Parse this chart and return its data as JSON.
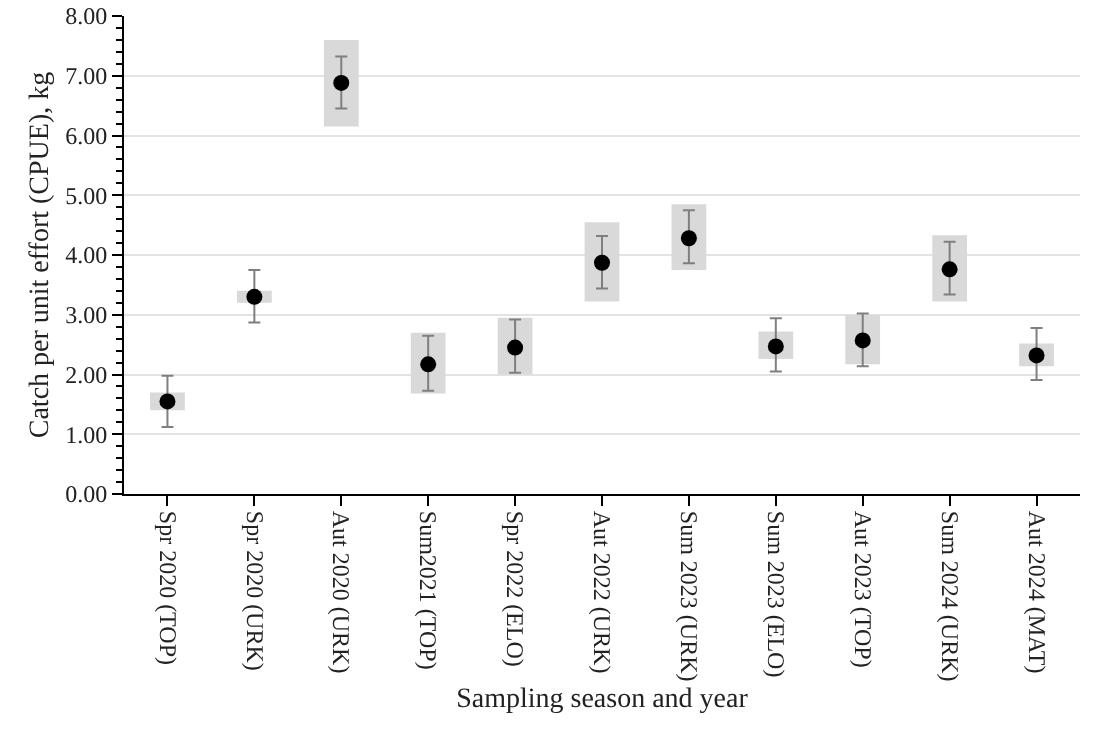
{
  "chart_data": {
    "type": "scatter",
    "xlabel": "Sampling season and year",
    "ylabel": "Catch per unit effort (CPUE), kg",
    "categories": [
      "Spr 2020 (TOP)",
      "Spr 2020 (URK)",
      "Aut 2020 (URK)",
      "Sum2021 (TOP)",
      "Spr 2022 (ELO)",
      "Aut 2022 (URK)",
      "Sum 2023 (URK)",
      "Sum 2023 (ELO)",
      "Aut 2023 (TOP)",
      "Sum 2024 (URK)",
      "Aut 2024 (MAT)"
    ],
    "series": [
      {
        "type": "bar",
        "color": "#d9d9d9",
        "base": [
          1.4,
          3.2,
          6.15,
          1.68,
          2.0,
          3.22,
          3.75,
          2.26,
          2.17,
          3.22,
          2.14
        ],
        "values": [
          0.3,
          0.2,
          1.45,
          1.02,
          0.95,
          1.33,
          1.1,
          0.46,
          0.83,
          1.11,
          0.38
        ]
      },
      {
        "color": "#000000",
        "values": [
          1.55,
          3.3,
          6.88,
          2.17,
          2.45,
          3.87,
          4.28,
          2.47,
          2.57,
          3.76,
          2.32
        ],
        "errors": [
          [
            1.12,
            1.98
          ],
          [
            2.87,
            3.75
          ],
          [
            6.45,
            7.32
          ],
          [
            1.73,
            2.65
          ],
          [
            2.03,
            2.92
          ],
          [
            3.44,
            4.32
          ],
          [
            3.86,
            4.75
          ],
          [
            2.05,
            2.94
          ],
          [
            2.14,
            3.02
          ],
          [
            3.34,
            4.22
          ],
          [
            1.91,
            2.78
          ]
        ]
      }
    ],
    "ylim": [
      0,
      8
    ],
    "yticks": [
      {
        "value": 0,
        "label": "0.00"
      },
      {
        "value": 1,
        "label": "1.00"
      },
      {
        "value": 2,
        "label": "2.00"
      },
      {
        "value": 3,
        "label": "3.00"
      },
      {
        "value": 4,
        "label": "4.00"
      },
      {
        "value": 5,
        "label": "5.00"
      },
      {
        "value": 6,
        "label": "6.00"
      },
      {
        "value": 7,
        "label": "7.00"
      },
      {
        "value": 8,
        "label": "8.00"
      }
    ],
    "grid": "y",
    "legend": false,
    "marker": "circle"
  }
}
